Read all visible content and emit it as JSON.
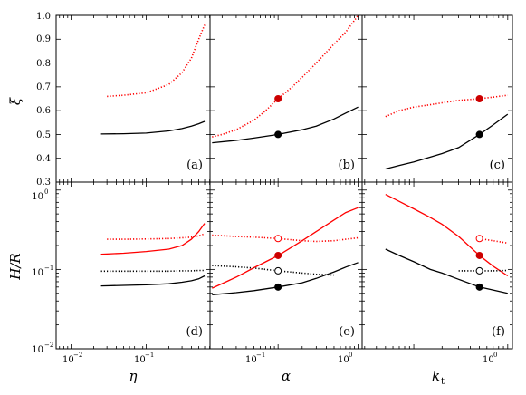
{
  "chart_data": [
    {
      "type": "line",
      "panel_label": "(a)",
      "xlim_log10": [
        -2.2,
        -0.15
      ],
      "ylim": [
        0.3,
        1.0
      ],
      "series": [
        {
          "style": "dotted",
          "color": "#ff0000",
          "x": [
            0.03,
            0.05,
            0.1,
            0.2,
            0.3,
            0.4,
            0.5,
            0.6
          ],
          "y": [
            0.66,
            0.665,
            0.675,
            0.71,
            0.76,
            0.82,
            0.9,
            0.96
          ]
        },
        {
          "style": "solid",
          "color": "#000000",
          "x": [
            0.025,
            0.05,
            0.1,
            0.2,
            0.3,
            0.4,
            0.5,
            0.6
          ],
          "y": [
            0.502,
            0.503,
            0.506,
            0.515,
            0.525,
            0.535,
            0.545,
            0.555
          ]
        }
      ]
    },
    {
      "type": "line",
      "panel_label": "(b)",
      "xlim_log10": [
        -1.85,
        0.05
      ],
      "ylim": [
        0.3,
        1.0
      ],
      "series": [
        {
          "style": "dotted",
          "color": "#ff0000",
          "x": [
            0.015,
            0.02,
            0.03,
            0.05,
            0.07,
            0.1,
            0.15,
            0.2,
            0.3,
            0.5,
            0.7,
            1.0
          ],
          "y": [
            0.49,
            0.5,
            0.52,
            0.56,
            0.6,
            0.65,
            0.7,
            0.74,
            0.8,
            0.88,
            0.93,
            1.0
          ]
        },
        {
          "style": "solid",
          "color": "#000000",
          "x": [
            0.015,
            0.03,
            0.05,
            0.1,
            0.2,
            0.3,
            0.5,
            0.7,
            1.0
          ],
          "y": [
            0.465,
            0.475,
            0.485,
            0.5,
            0.52,
            0.535,
            0.565,
            0.59,
            0.615
          ]
        }
      ],
      "markers": [
        {
          "x": 0.1,
          "y": 0.65,
          "color": "#cc0000",
          "filled": true
        },
        {
          "x": 0.1,
          "y": 0.5,
          "color": "#000000",
          "filled": true
        }
      ]
    },
    {
      "type": "line",
      "panel_label": "(c)",
      "xlim_log10": [
        -1.55,
        0.05
      ],
      "ylim": [
        0.3,
        1.0
      ],
      "series": [
        {
          "style": "dotted",
          "color": "#ff0000",
          "x": [
            0.05,
            0.07,
            0.1,
            0.15,
            0.2,
            0.3,
            0.5,
            0.7,
            1.0
          ],
          "y": [
            0.575,
            0.6,
            0.615,
            0.625,
            0.633,
            0.643,
            0.65,
            0.657,
            0.665
          ]
        },
        {
          "style": "solid",
          "color": "#000000",
          "x": [
            0.05,
            0.07,
            0.1,
            0.15,
            0.2,
            0.3,
            0.5,
            0.7,
            1.0
          ],
          "y": [
            0.355,
            0.37,
            0.385,
            0.405,
            0.42,
            0.445,
            0.5,
            0.54,
            0.585
          ]
        }
      ],
      "markers": [
        {
          "x": 0.5,
          "y": 0.65,
          "color": "#cc0000",
          "filled": true
        },
        {
          "x": 0.5,
          "y": 0.5,
          "color": "#000000",
          "filled": true
        }
      ]
    },
    {
      "type": "line",
      "panel_label": "(d)",
      "xlim_log10": [
        -2.2,
        -0.15
      ],
      "ylim_log10": [
        -2,
        0.1
      ],
      "series": [
        {
          "style": "dotted",
          "color": "#ff0000",
          "x": [
            0.03,
            0.05,
            0.1,
            0.2,
            0.3,
            0.4,
            0.5,
            0.6
          ],
          "y": [
            0.24,
            0.24,
            0.242,
            0.245,
            0.25,
            0.255,
            0.265,
            0.28
          ]
        },
        {
          "style": "solid",
          "color": "#ff0000",
          "x": [
            0.025,
            0.05,
            0.1,
            0.2,
            0.3,
            0.4,
            0.5,
            0.6
          ],
          "y": [
            0.155,
            0.16,
            0.168,
            0.18,
            0.2,
            0.24,
            0.3,
            0.38
          ]
        },
        {
          "style": "dotted",
          "color": "#000000",
          "x": [
            0.025,
            0.05,
            0.1,
            0.2,
            0.3,
            0.4,
            0.5,
            0.6
          ],
          "y": [
            0.095,
            0.095,
            0.095,
            0.095,
            0.096,
            0.096,
            0.097,
            0.097
          ]
        },
        {
          "style": "solid",
          "color": "#000000",
          "x": [
            0.025,
            0.05,
            0.1,
            0.2,
            0.3,
            0.4,
            0.5,
            0.6
          ],
          "y": [
            0.062,
            0.063,
            0.064,
            0.066,
            0.069,
            0.072,
            0.076,
            0.083
          ]
        }
      ]
    },
    {
      "type": "line",
      "panel_label": "(e)",
      "xlim_log10": [
        -1.85,
        0.05
      ],
      "ylim_log10": [
        -2,
        0.1
      ],
      "series": [
        {
          "style": "dotted",
          "color": "#ff0000",
          "x": [
            0.015,
            0.03,
            0.05,
            0.1,
            0.2,
            0.3,
            0.5,
            0.7,
            1.0
          ],
          "y": [
            0.27,
            0.26,
            0.255,
            0.245,
            0.23,
            0.225,
            0.23,
            0.24,
            0.25
          ]
        },
        {
          "style": "solid",
          "color": "#ff0000",
          "x": [
            0.015,
            0.03,
            0.05,
            0.1,
            0.2,
            0.3,
            0.5,
            0.7,
            1.0
          ],
          "y": [
            0.058,
            0.08,
            0.105,
            0.15,
            0.23,
            0.3,
            0.42,
            0.52,
            0.6
          ]
        },
        {
          "style": "dotted",
          "color": "#000000",
          "x": [
            0.015,
            0.03,
            0.05,
            0.1,
            0.2,
            0.3,
            0.5
          ],
          "y": [
            0.112,
            0.108,
            0.104,
            0.096,
            0.09,
            0.087,
            0.085
          ]
        },
        {
          "style": "solid",
          "color": "#000000",
          "x": [
            0.015,
            0.03,
            0.05,
            0.1,
            0.2,
            0.3,
            0.5,
            0.7,
            1.0
          ],
          "y": [
            0.048,
            0.051,
            0.054,
            0.06,
            0.068,
            0.077,
            0.093,
            0.107,
            0.122
          ]
        }
      ],
      "markers": [
        {
          "x": 0.1,
          "y": 0.245,
          "color": "#ff0000",
          "filled": false
        },
        {
          "x": 0.1,
          "y": 0.15,
          "color": "#cc0000",
          "filled": true
        },
        {
          "x": 0.1,
          "y": 0.096,
          "color": "#000000",
          "filled": false
        },
        {
          "x": 0.1,
          "y": 0.06,
          "color": "#000000",
          "filled": true
        }
      ]
    },
    {
      "type": "line",
      "panel_label": "(f)",
      "xlim_log10": [
        -1.55,
        0.05
      ],
      "ylim_log10": [
        -2,
        0.1
      ],
      "series": [
        {
          "style": "dotted",
          "color": "#ff0000",
          "x": [
            0.5,
            0.7,
            1.0
          ],
          "y": [
            0.245,
            0.23,
            0.215
          ]
        },
        {
          "style": "solid",
          "color": "#ff0000",
          "x": [
            0.05,
            0.07,
            0.1,
            0.15,
            0.2,
            0.3,
            0.5,
            0.7,
            1.0
          ],
          "y": [
            0.88,
            0.72,
            0.58,
            0.45,
            0.37,
            0.26,
            0.15,
            0.11,
            0.083
          ]
        },
        {
          "style": "dotted",
          "color": "#000000",
          "x": [
            0.3,
            0.5,
            0.7,
            1.0
          ],
          "y": [
            0.096,
            0.096,
            0.096,
            0.097
          ]
        },
        {
          "style": "solid",
          "color": "#000000",
          "x": [
            0.05,
            0.07,
            0.1,
            0.15,
            0.2,
            0.3,
            0.5,
            0.7,
            1.0
          ],
          "y": [
            0.18,
            0.15,
            0.125,
            0.1,
            0.09,
            0.075,
            0.06,
            0.055,
            0.05
          ]
        }
      ],
      "markers": [
        {
          "x": 0.5,
          "y": 0.245,
          "color": "#ff0000",
          "filled": false
        },
        {
          "x": 0.5,
          "y": 0.15,
          "color": "#cc0000",
          "filled": true
        },
        {
          "x": 0.5,
          "y": 0.096,
          "color": "#000000",
          "filled": false
        },
        {
          "x": 0.5,
          "y": 0.06,
          "color": "#000000",
          "filled": true
        }
      ]
    }
  ],
  "axes": {
    "top_yticks": [
      "0.3",
      "0.4",
      "0.5",
      "0.6",
      "0.7",
      "0.8",
      "0.9",
      "1.0"
    ],
    "bottom_yticks": [
      "10",
      "10",
      "10"
    ],
    "bottom_ytick_exps": [
      "−2",
      "−1",
      "0"
    ],
    "xticks_left": [
      "10",
      "10"
    ],
    "xticks_left_exps": [
      "−2",
      "−1"
    ],
    "xticks_mid": [
      "10",
      "10"
    ],
    "xticks_mid_exps": [
      "−1",
      "0"
    ],
    "xticks_right": [
      "10"
    ],
    "xticks_right_exps": [
      "0"
    ]
  },
  "labels": {
    "ylabel_top": "ξ",
    "ylabel_bottom": "H/R",
    "xlabel_a": "η",
    "xlabel_b": "α",
    "xlabel_c_main": "k",
    "xlabel_c_sub": "t"
  }
}
